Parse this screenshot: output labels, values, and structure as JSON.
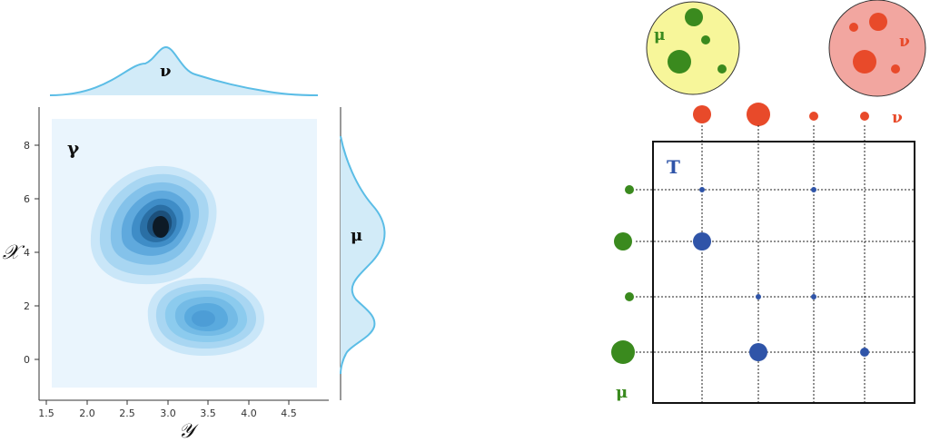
{
  "left_plot": {
    "gamma_label": "γ",
    "nu_label": "ν",
    "mu_label": "μ",
    "x_axis_label": "𝒴",
    "y_axis_label": "𝒳",
    "x_ticks": [
      "1.5",
      "2.0",
      "2.5",
      "3.0",
      "3.5",
      "4.0",
      "4.5"
    ],
    "y_ticks": [
      "0",
      "2",
      "4",
      "6",
      "8"
    ],
    "colors": {
      "fill": "#cfeaf8",
      "line": "#5bbde6",
      "bg": "#eaf5fd",
      "dark": "#0d1a26"
    }
  },
  "right_plot": {
    "mu_circle_label": "μ",
    "nu_circle_label": "ν",
    "nu_row_label": "ν",
    "mu_col_label": "μ",
    "t_label": "T",
    "colors": {
      "green": "#3a8a1e",
      "red": "#e84a2a",
      "blue": "#2f54a8",
      "yellow": "#f7f69a",
      "pink": "#f2a6a0"
    }
  },
  "chart_data": {
    "type": "transport_plan_diagram",
    "mu_weights": [
      1,
      2,
      1,
      3
    ],
    "nu_weights": [
      2,
      3,
      1,
      1
    ],
    "transport_plan": [
      [
        1,
        0,
        1,
        0
      ],
      [
        3,
        0,
        0,
        0
      ],
      [
        0,
        1,
        1,
        0
      ],
      [
        0,
        3,
        0,
        2
      ]
    ]
  }
}
